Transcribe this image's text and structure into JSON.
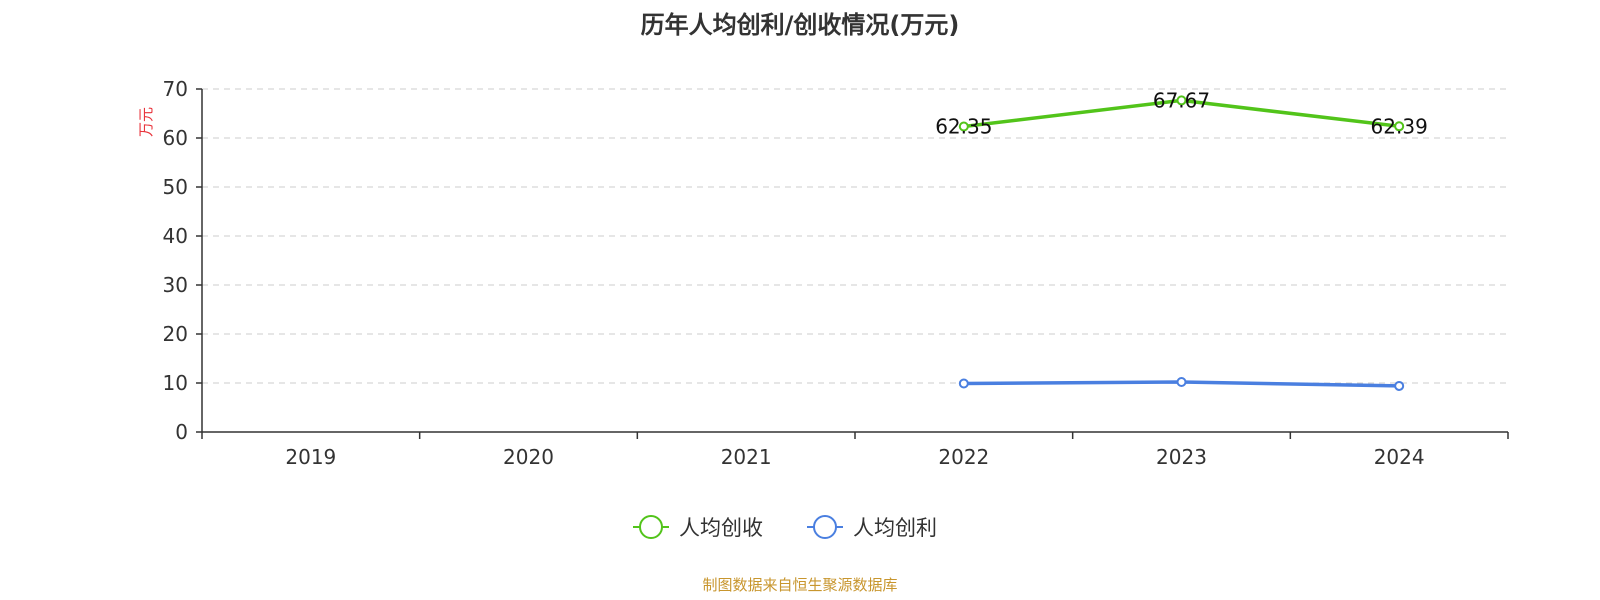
{
  "chart_data": {
    "type": "line",
    "title": "历年人均创利/创收情况(万元)",
    "ylabel": "万元",
    "xlabel": "",
    "categories": [
      "2019",
      "2020",
      "2021",
      "2022",
      "2023",
      "2024"
    ],
    "ylim": [
      0,
      70
    ],
    "yticks": [
      0,
      10,
      20,
      30,
      40,
      50,
      60,
      70
    ],
    "grid": true,
    "legend_position": "bottom-center",
    "series": [
      {
        "name": "人均创收",
        "color": "#52c41a",
        "values": [
          null,
          null,
          null,
          62.35,
          67.67,
          62.39
        ],
        "labels": [
          "",
          "",
          "",
          "62.35",
          "67.67",
          "62.39"
        ]
      },
      {
        "name": "人均创利",
        "color": "#4a7fe0",
        "values": [
          null,
          null,
          null,
          9.9,
          10.2,
          9.4
        ],
        "labels": [
          "",
          "",
          "",
          "",
          "",
          ""
        ]
      }
    ]
  },
  "footer": {
    "source": "制图数据来自恒生聚源数据库"
  },
  "colors": {
    "axis": "#333333",
    "grid": "#cccccc",
    "ylabel": "#e8343c",
    "source": "#c8962e"
  }
}
